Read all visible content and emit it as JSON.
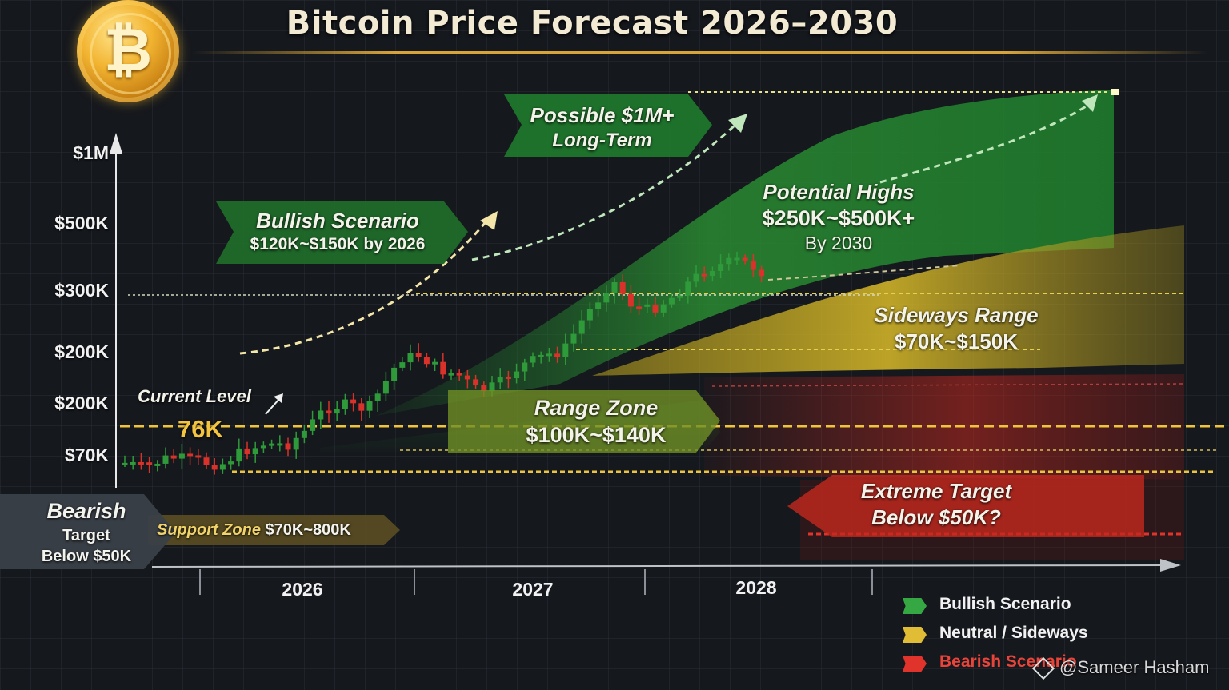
{
  "page": {
    "title": "Bitcoin Price Forecast 2026–2030",
    "coin_symbol": "₿",
    "watermark": "@Sameer Hasham"
  },
  "colors": {
    "background": "#15181d",
    "bullish": "#2f9a3a",
    "neutral": "#d7b52a",
    "bearish": "#d8322a",
    "accent": "#d8a43a"
  },
  "chart_data": {
    "type": "candlestick",
    "title": "Bitcoin Price Forecast 2026–2030",
    "y_tick_labels": [
      "$1M",
      "$500K",
      "$300K",
      "$200K",
      "$200K",
      "$70K"
    ],
    "x_tick_labels": [
      "2026",
      "2027",
      "2028"
    ],
    "current_level": {
      "label": "Current Level",
      "value": "76K"
    },
    "annotations": {
      "possible_1m": [
        "Possible $1M+",
        "Long-Term"
      ],
      "bullish": [
        "Bullish Scenario",
        "$120K~$150K by 2026"
      ],
      "potential_highs": [
        "Potential Highs",
        "$250K~$500K+",
        "By 2030"
      ],
      "sideways": [
        "Sideways Range",
        "$70K~$150K"
      ],
      "range_zone": [
        "Range Zone",
        "$100K~$140K"
      ],
      "support_zone": [
        "Support Zone",
        "$70K~800K"
      ],
      "extreme_target": [
        "Extreme Target",
        "Below $50K?"
      ],
      "bearish_target": [
        "Bearish",
        "Target",
        "Below $50K"
      ]
    },
    "legend": [
      {
        "name": "Bullish Scenario",
        "color": "#35a844"
      },
      {
        "name": "Neutral / Sideways",
        "color": "#e0bd35"
      },
      {
        "name": "Bearish Scenario",
        "color": "#e0332b"
      }
    ],
    "legend_position": "bottom-right",
    "grid": true
  }
}
